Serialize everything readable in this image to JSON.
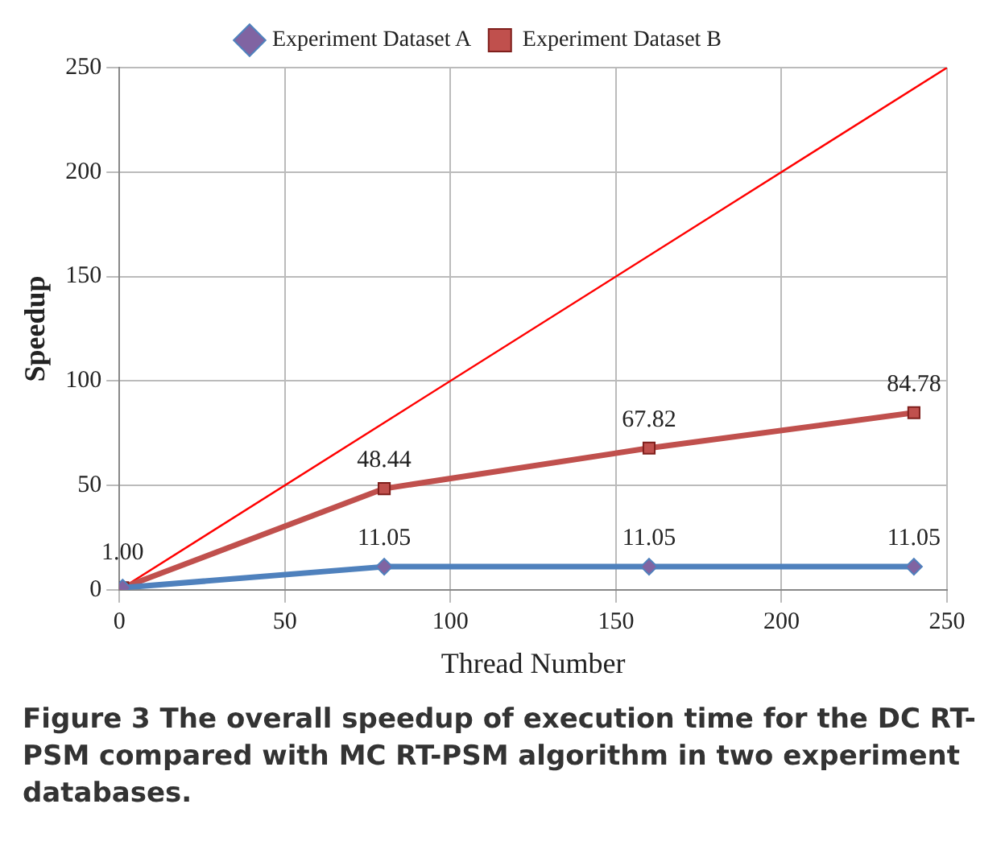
{
  "chart_data": {
    "type": "line",
    "xlabel": "Thread Number",
    "ylabel": "Speedup",
    "xlim": [
      0,
      250
    ],
    "xticks": [
      0,
      50,
      100,
      150,
      200,
      250
    ],
    "ylim": [
      0,
      250
    ],
    "yticks": [
      0,
      50,
      100,
      150,
      200,
      250
    ],
    "grid": true,
    "legend": "top",
    "line_style": "solid",
    "series": [
      {
        "name": "Experiment Dataset A",
        "color": "#4f81bd",
        "marker": "diamond",
        "x": [
          1,
          80,
          160,
          240
        ],
        "values": [
          1,
          11.05,
          11.05,
          11.05
        ],
        "value_labels": [
          null,
          "11.05",
          "11.05",
          "11.05"
        ]
      },
      {
        "name": "Experiment Dataset B",
        "color": "#c0504d",
        "marker": "square",
        "x": [
          1,
          80,
          160,
          240
        ],
        "values": [
          1,
          48.44,
          67.82,
          84.78
        ],
        "value_labels": [
          "1.00",
          "48.44",
          "67.82",
          "84.78"
        ]
      },
      {
        "color": "#ff0000",
        "marker": "none",
        "x": [
          0,
          250
        ],
        "values": [
          0,
          250
        ]
      }
    ],
    "annotations": [
      "Figure 3 The overall speedup of execution time for the DC RT-PSM compared with MC RT-PSM algorithm in two experiment databases."
    ]
  }
}
